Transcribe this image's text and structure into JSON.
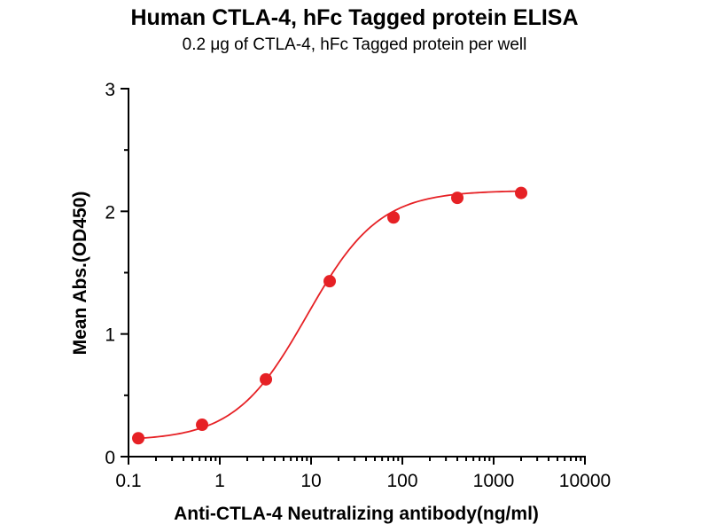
{
  "chart_data": {
    "type": "scatter",
    "title": "Human CTLA-4, hFc Tagged protein ELISA",
    "subtitle": "0.2 μg of CTLA-4, hFc Tagged protein per well",
    "xlabel": "Anti-CTLA-4 Neutralizing antibody(ng/ml)",
    "ylabel": "Mean Abs.(OD450)",
    "x_scale": "log10",
    "xlim": [
      0.1,
      10000
    ],
    "ylim": [
      0,
      3
    ],
    "x_ticks": [
      0.1,
      1,
      10,
      100,
      1000,
      10000
    ],
    "x_tick_labels": [
      "0.1",
      "1",
      "10",
      "100",
      "1000",
      "10000"
    ],
    "y_ticks": [
      0,
      1,
      2,
      3
    ],
    "y_tick_labels": [
      "0",
      "1",
      "2",
      "3"
    ],
    "y_minor_ticks": [
      0.5,
      1.5,
      2.5
    ],
    "grid": "off",
    "legend": "none",
    "points": {
      "x": [
        0.128,
        0.64,
        3.2,
        16,
        80,
        400,
        2000
      ],
      "y": [
        0.15,
        0.26,
        0.63,
        1.43,
        1.95,
        2.11,
        2.15
      ]
    },
    "fit_curve": {
      "model": "4PL",
      "bottom": 0.13,
      "top": 2.17,
      "ec50": 9.0,
      "hill": 1.1
    },
    "series_color": "#e62125",
    "axis_color": "#000000",
    "marker_radius": 7
  }
}
